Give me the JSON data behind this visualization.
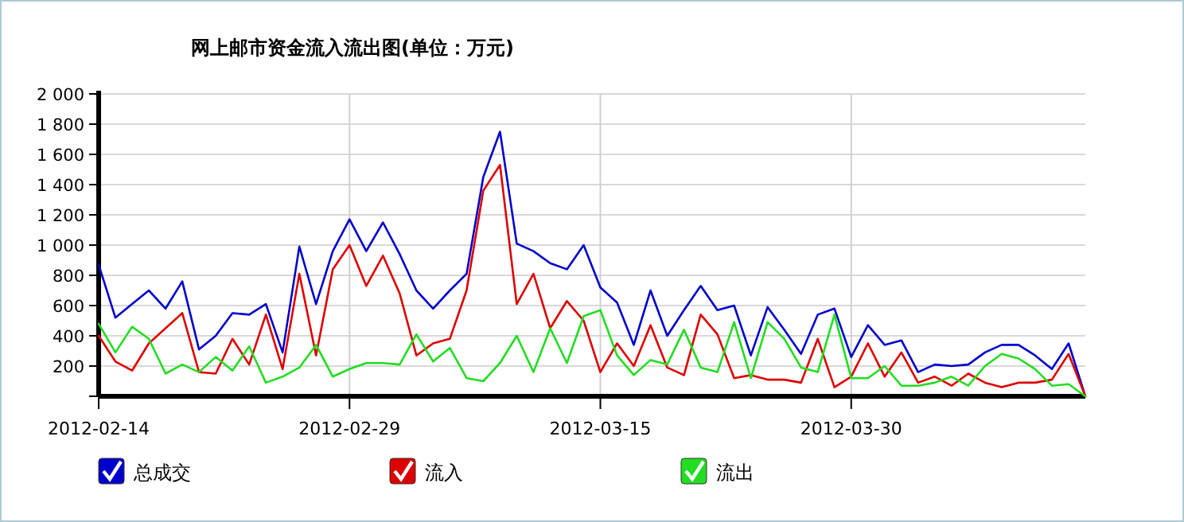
{
  "chart_data": {
    "type": "line",
    "title": "网上邮市资金流入流出图(单位：万元)",
    "x": [
      "2012-02-14",
      "2012-02-15",
      "2012-02-16",
      "2012-02-17",
      "2012-02-18",
      "2012-02-19",
      "2012-02-20",
      "2012-02-21",
      "2012-02-22",
      "2012-02-23",
      "2012-02-24",
      "2012-02-25",
      "2012-02-26",
      "2012-02-27",
      "2012-02-28",
      "2012-02-29",
      "2012-03-01",
      "2012-03-02",
      "2012-03-03",
      "2012-03-04",
      "2012-03-05",
      "2012-03-06",
      "2012-03-07",
      "2012-03-08",
      "2012-03-09",
      "2012-03-10",
      "2012-03-11",
      "2012-03-12",
      "2012-03-13",
      "2012-03-14",
      "2012-03-15",
      "2012-03-16",
      "2012-03-17",
      "2012-03-18",
      "2012-03-19",
      "2012-03-20",
      "2012-03-21",
      "2012-03-22",
      "2012-03-23",
      "2012-03-24",
      "2012-03-25",
      "2012-03-26",
      "2012-03-27",
      "2012-03-28",
      "2012-03-29",
      "2012-03-30",
      "2012-03-31",
      "2012-04-01",
      "2012-04-02",
      "2012-04-03",
      "2012-04-04",
      "2012-04-05",
      "2012-04-06",
      "2012-04-07",
      "2012-04-08",
      "2012-04-09",
      "2012-04-10",
      "2012-04-11",
      "2012-04-12",
      "2012-04-13"
    ],
    "series": [
      {
        "name": "总成交",
        "color": "#0000cc",
        "values": [
          870,
          520,
          610,
          700,
          580,
          760,
          310,
          400,
          550,
          540,
          610,
          290,
          990,
          610,
          960,
          1170,
          960,
          1150,
          940,
          700,
          580,
          700,
          810,
          1450,
          1750,
          1010,
          960,
          880,
          840,
          1000,
          720,
          620,
          340,
          700,
          400,
          570,
          730,
          570,
          600,
          270,
          590,
          440,
          280,
          540,
          580,
          260,
          470,
          340,
          370,
          160,
          210,
          200,
          210,
          290,
          340,
          340,
          270,
          180,
          350,
          0
        ]
      },
      {
        "name": "流入",
        "color": "#dd0000",
        "values": [
          400,
          230,
          170,
          350,
          450,
          550,
          160,
          150,
          380,
          210,
          540,
          180,
          810,
          270,
          840,
          1000,
          730,
          930,
          680,
          270,
          350,
          380,
          700,
          1360,
          1530,
          610,
          810,
          450,
          630,
          500,
          160,
          350,
          200,
          470,
          190,
          140,
          540,
          410,
          120,
          140,
          110,
          110,
          90,
          380,
          60,
          130,
          350,
          130,
          290,
          90,
          130,
          70,
          150,
          90,
          60,
          90,
          90,
          110,
          280,
          0
        ]
      },
      {
        "name": "流出",
        "color": "#22dd22",
        "values": [
          480,
          290,
          460,
          380,
          150,
          210,
          160,
          260,
          170,
          330,
          90,
          130,
          190,
          340,
          130,
          180,
          220,
          220,
          210,
          410,
          230,
          320,
          120,
          100,
          220,
          400,
          160,
          450,
          220,
          530,
          570,
          270,
          140,
          240,
          210,
          440,
          190,
          160,
          490,
          120,
          490,
          380,
          190,
          160,
          540,
          120,
          120,
          200,
          70,
          70,
          90,
          130,
          70,
          200,
          280,
          250,
          180,
          70,
          80,
          0
        ]
      }
    ],
    "xlim": [
      "2012-02-14",
      "2012-04-13"
    ],
    "xticks": [
      "2012-02-14",
      "2012-02-29",
      "2012-03-15",
      "2012-03-30"
    ],
    "ylim": [
      0,
      2000
    ],
    "yticks": [
      {
        "value": 0,
        "label": null
      },
      {
        "value": 200,
        "label": "200"
      },
      {
        "value": 400,
        "label": "400"
      },
      {
        "value": 600,
        "label": "600"
      },
      {
        "value": 800,
        "label": "800"
      },
      {
        "value": 1000,
        "label": "1 000"
      },
      {
        "value": 1200,
        "label": "1 200"
      },
      {
        "value": 1400,
        "label": "1 400"
      },
      {
        "value": 1600,
        "label": "1 600"
      },
      {
        "value": 1800,
        "label": "1 800"
      },
      {
        "value": 2000,
        "label": "2 000"
      }
    ],
    "grid": true,
    "legend": "bottom",
    "marker": "none",
    "line_style": "solid"
  }
}
